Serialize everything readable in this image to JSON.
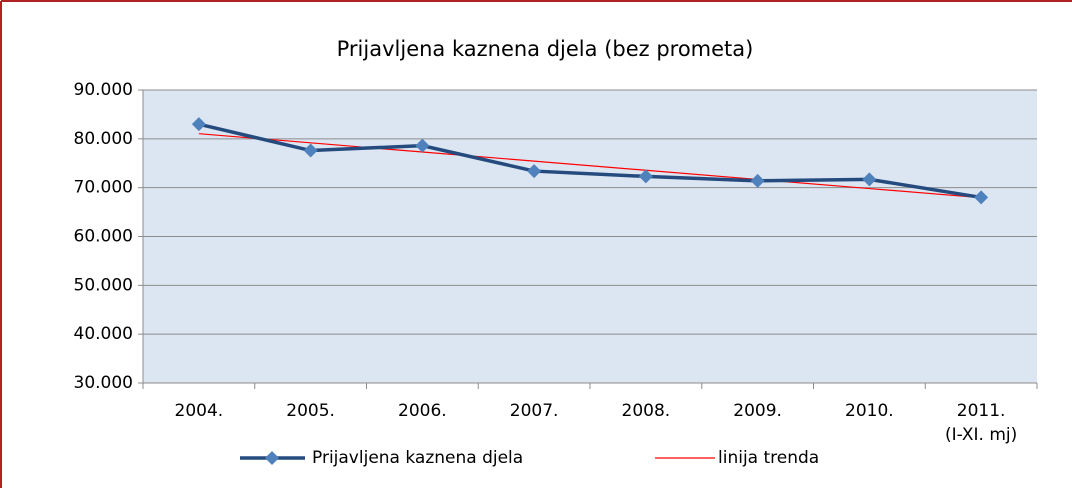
{
  "chart_data": {
    "type": "line",
    "title": "Prijavljena kaznena djela (bez prometa)",
    "categories": [
      "2004.",
      "2005.",
      "2006.",
      "2007.",
      "2008.",
      "2009.",
      "2010.",
      "2011.\n(I-XI. mj)"
    ],
    "series": [
      {
        "name": "Prijavljena kaznena djela",
        "color": "#254b7e",
        "marker_color": "#4f81bd",
        "values": [
          83000,
          77600,
          78600,
          73400,
          72300,
          71400,
          71700,
          68000
        ]
      },
      {
        "name": "linija trenda",
        "color": "#ff0000",
        "values": [
          81050,
          79180,
          77310,
          75440,
          73560,
          71690,
          69820,
          67950
        ]
      }
    ],
    "ylim": [
      30000,
      90000
    ],
    "yticks": [
      {
        "value": 30000,
        "label": "30.000"
      },
      {
        "value": 40000,
        "label": "40.000"
      },
      {
        "value": 50000,
        "label": "50.000"
      },
      {
        "value": 60000,
        "label": "60.000"
      },
      {
        "value": 70000,
        "label": "70.000"
      },
      {
        "value": 80000,
        "label": "80.000"
      },
      {
        "value": 90000,
        "label": "90.000"
      }
    ],
    "grid": true,
    "legend": "bottom"
  }
}
